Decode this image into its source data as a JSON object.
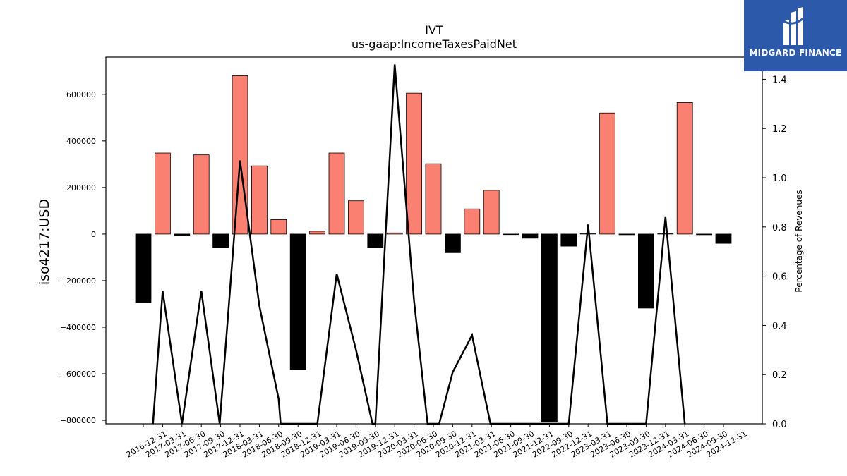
{
  "chart_data": {
    "type": "bar",
    "title": "IVT",
    "subtitle": "us-gaap:IncomeTaxesPaidNet",
    "ylabel": "iso4217:USD",
    "y2label": "Percentage of Revenues",
    "categories": [
      "2016-12-31",
      "2017-03-31",
      "2017-06-30",
      "2017-09-30",
      "2017-12-31",
      "2018-03-31",
      "2018-06-30",
      "2018-09-30",
      "2018-12-31",
      "2019-03-31",
      "2019-06-30",
      "2019-09-30",
      "2019-12-31",
      "2020-03-31",
      "2020-06-30",
      "2020-09-30",
      "2020-12-31",
      "2021-03-31",
      "2021-06-30",
      "2021-09-30",
      "2021-12-31",
      "2022-09-30",
      "2022-12-31",
      "2023-03-31",
      "2023-06-30",
      "2023-09-30",
      "2023-12-31",
      "2024-03-31",
      "2024-06-30",
      "2024-09-30",
      "2024-12-31"
    ],
    "series": [
      {
        "type": "bar",
        "values": [
          -295000,
          348000,
          -5000,
          340000,
          -58000,
          680000,
          293000,
          62000,
          -582000,
          12000,
          348000,
          143000,
          -58000,
          5000,
          605000,
          302000,
          -80000,
          108000,
          188000,
          -2000,
          -18000,
          -808000,
          -52000,
          3000,
          520000,
          -3000,
          -318000,
          3000,
          565000,
          -3000,
          -40000
        ],
        "positive_color": "#fa8072",
        "negative_color": "#000000"
      },
      {
        "type": "line",
        "axis": "right",
        "values": [
          0.0,
          0.54,
          0.0,
          0.54,
          0.0,
          1.07,
          0.48,
          0.1,
          0.0,
          0.0,
          0.61,
          0.3,
          0.0,
          0.0,
          1.46,
          0.5,
          0.0,
          0.0,
          0.21,
          0.36,
          0.0,
          0.0,
          0.0,
          0.0,
          0.0,
          0.81,
          0.0,
          0.0,
          0.0,
          0.84,
          0.0
        ],
        "x_positions": [
          0.5,
          1.0,
          2.0,
          3.0,
          3.95,
          5.0,
          6.0,
          7.0,
          7.1,
          9.0,
          10.0,
          11.0,
          11.85,
          12.0,
          13.0,
          14.0,
          14.7,
          15.3,
          16.0,
          17.0,
          17.95,
          19.0,
          20.0,
          21.0,
          22.0,
          23.0,
          24.0,
          25.0,
          26.0,
          27.0,
          28.0
        ],
        "color": "#000000"
      }
    ],
    "y_ticks": [
      "−800000",
      "−600000",
      "−400000",
      "−200000",
      "0",
      "200000",
      "400000",
      "600000"
    ],
    "y_tick_values": [
      -800000,
      -600000,
      -400000,
      -200000,
      0,
      200000,
      400000,
      600000
    ],
    "y2_ticks": [
      "0.0",
      "0.2",
      "0.4",
      "0.6",
      "0.8",
      "1.0",
      "1.2",
      "1.4"
    ],
    "y2_tick_values": [
      0.0,
      0.2,
      0.4,
      0.6,
      0.8,
      1.0,
      1.2,
      1.4
    ],
    "ylim": [
      -815000,
      760000
    ],
    "y2lim": [
      0.0,
      1.49
    ]
  },
  "logo": {
    "text": "MIDGARD FINANCE"
  }
}
